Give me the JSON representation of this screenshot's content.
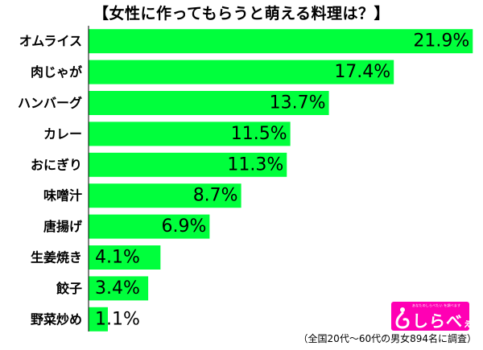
{
  "chart_data": {
    "type": "bar",
    "orientation": "horizontal",
    "title": "【女性に作ってもらうと萌える料理は？】",
    "categories": [
      "オムライス",
      "肉じゃが",
      "ハンバーグ",
      "カレー",
      "おにぎり",
      "味噌汁",
      "唐揚げ",
      "生姜焼き",
      "餃子",
      "野菜炒め"
    ],
    "values": [
      21.9,
      17.4,
      13.7,
      11.5,
      11.3,
      8.7,
      6.9,
      4.1,
      3.4,
      1.1
    ],
    "value_labels": [
      "21.9%",
      "17.4%",
      "13.7%",
      "11.5%",
      "11.3%",
      "8.7%",
      "6.9%",
      "4.1%",
      "3.4%",
      "1.1%"
    ],
    "xlim": [
      0,
      22.3
    ],
    "grid": false,
    "legend": "none",
    "bar_color": "#00ff3c"
  },
  "logo": {
    "tagline": "あなたのしらべたい を調べます",
    "text_main": "しらべ",
    "text_small": "ぇ",
    "color": "#ff00b4"
  },
  "footnote": "（全国20代〜60代の男女894名に調査）"
}
